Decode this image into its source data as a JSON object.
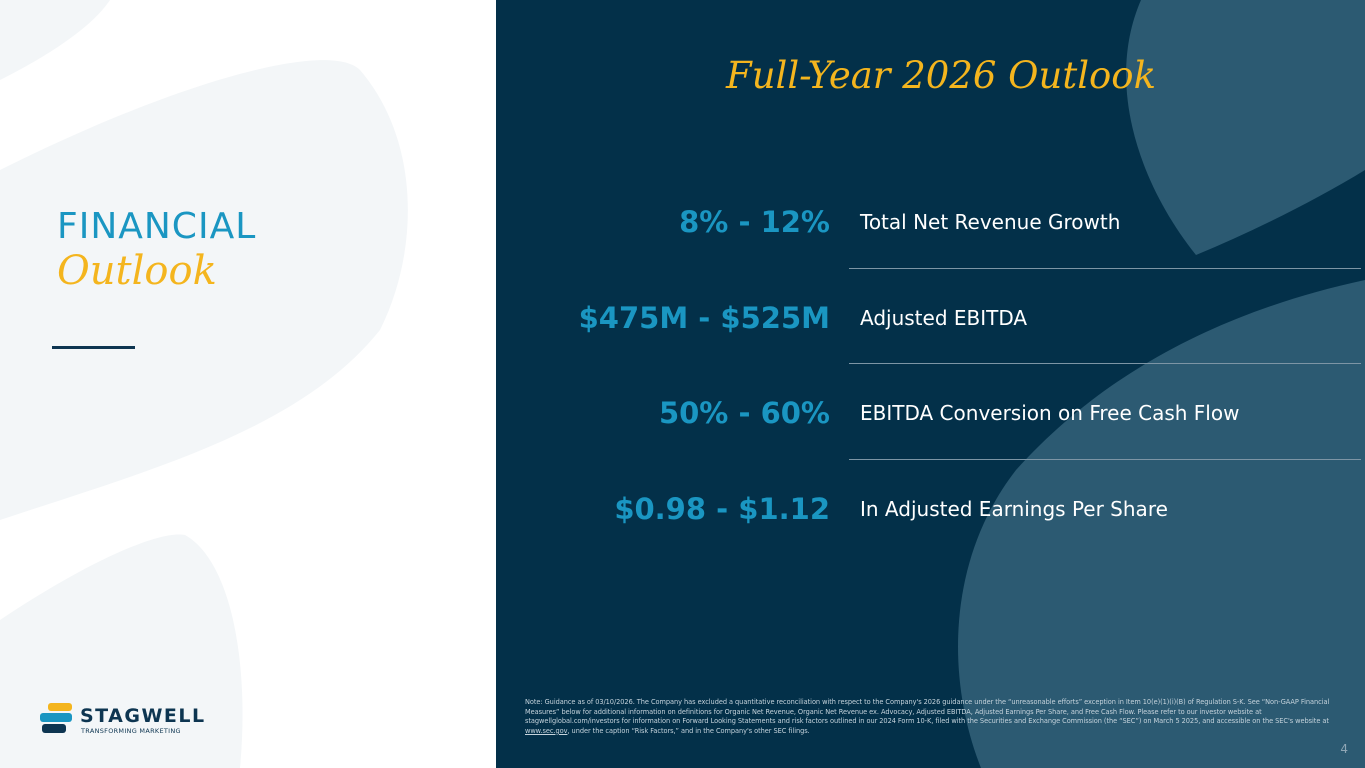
{
  "left": {
    "title_line1": "FINANCIAL",
    "title_line2": "Outlook",
    "logo": {
      "wordmark": "STAGWELL",
      "tagline": "TRANSFORMING MARKETING"
    }
  },
  "right": {
    "heading": "Full-Year 2026 Outlook",
    "metrics": [
      {
        "value": "8% - 12%",
        "label": "Total Net Revenue Growth"
      },
      {
        "value": "$475M - $525M",
        "label": "Adjusted EBITDA"
      },
      {
        "value": "50% - 60%",
        "label": "EBITDA Conversion on Free Cash Flow"
      },
      {
        "value": "$0.98 - $1.12",
        "label": "In Adjusted Earnings Per Share"
      }
    ],
    "footnote": {
      "text_before_link": "Note: Guidance as of 03/10/2026. The Company has excluded a quantitative reconciliation with respect to the Company's 2026 guidance under the “unreasonable efforts” exception in Item 10(e)(1)(i)(B) of Regulation S-K. See “Non-GAAP Financial Measures” below for additional information on definitions for Organic Net Revenue, Organic Net Revenue ex. Advocacy, Adjusted EBITDA, Adjusted Earnings Per Share, and Free Cash Flow. Please refer to our investor website at stagwellglobal.com/investors for information on Forward Looking Statements and risk factors outlined in our 2024 Form 10-K, filed with the Securities and Exchange Commission (the “SEC”) on March 5 2025, and accessible on the SEC's website at ",
      "link_text": "www.sec.gov",
      "text_after_link": ", under the caption “Risk Factors,” and in the Company's other SEC filings."
    },
    "page_number": "4"
  },
  "colors": {
    "navy": "#033049",
    "accent_blue": "#1a96c2",
    "gold": "#f4b51e"
  }
}
